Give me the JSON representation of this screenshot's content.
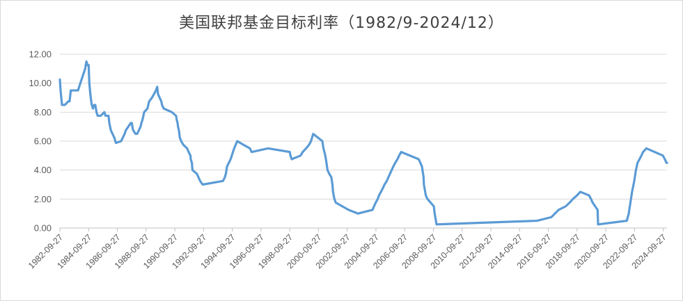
{
  "chart_data": {
    "type": "line",
    "title": "美国联邦基金目标利率（1982/9-2024/12）",
    "xlabel": "",
    "ylabel": "",
    "ylim": [
      0,
      12
    ],
    "yticks": [
      "0.00",
      "2.00",
      "4.00",
      "6.00",
      "8.00",
      "10.00",
      "12.00"
    ],
    "xtick_labels": [
      "1982-09-27",
      "1984-09-27",
      "1986-09-27",
      "1988-09-27",
      "1990-09-27",
      "1992-09-27",
      "1994-09-27",
      "1996-09-27",
      "1998-09-27",
      "2000-09-27",
      "2002-09-27",
      "2004-09-27",
      "2006-09-27",
      "2008-09-27",
      "2010-09-27",
      "2012-09-27",
      "2014-09-27",
      "2016-09-27",
      "2018-09-27",
      "2020-09-27",
      "2022-09-27",
      "2024-09-27"
    ],
    "x_range": [
      "1982-09-27",
      "2024-12-31"
    ],
    "grid": "horizontal",
    "line_color": "#5b9bd5",
    "series": [
      {
        "x": [
          "1982-09-27",
          "1982-10-15",
          "1982-11-20",
          "1983-02-01",
          "1983-05-01",
          "1983-06-01",
          "1983-07-01",
          "1983-08-01",
          "1983-10-01",
          "1984-01-01",
          "1984-03-01",
          "1984-05-01",
          "1984-07-01",
          "1984-08-01",
          "1984-09-01",
          "1984-09-27",
          "1984-10-15",
          "1984-11-01",
          "1984-11-20",
          "1984-12-15",
          "1985-01-15",
          "1985-02-15",
          "1985-03-15",
          "1985-04-15",
          "1985-05-15",
          "1985-06-15",
          "1985-08-01",
          "1985-11-01",
          "1985-12-01",
          "1986-01-15",
          "1986-02-15",
          "1986-03-07",
          "1986-04-15",
          "1986-07-11",
          "1986-08-21",
          "1987-01-01",
          "1987-04-01",
          "1987-05-01",
          "1987-09-04",
          "1987-10-01",
          "1987-10-22",
          "1987-11-04",
          "1988-01-01",
          "1988-02-11",
          "1988-03-29",
          "1988-05-09",
          "1988-06-01",
          "1988-06-30",
          "1988-08-09",
          "1988-11-01",
          "1988-11-22",
          "1988-12-15",
          "1989-02-24",
          "1989-06-05",
          "1989-07-07",
          "1989-07-27",
          "1989-10-18",
          "1989-11-06",
          "1989-12-20",
          "1990-07-13",
          "1990-10-29",
          "1990-11-13",
          "1990-12-07",
          "1990-12-18",
          "1991-01-09",
          "1991-02-01",
          "1991-03-08",
          "1991-04-30",
          "1991-08-06",
          "1991-09-13",
          "1991-10-31",
          "1991-11-06",
          "1991-12-06",
          "1991-12-20",
          "1992-04-09",
          "1992-07-02",
          "1992-09-04",
          "1994-02-04",
          "1994-03-22",
          "1994-04-18",
          "1994-05-17",
          "1994-08-16",
          "1994-11-15",
          "1995-02-01",
          "1995-07-06",
          "1995-12-19",
          "1996-01-31",
          "1997-03-25",
          "1998-09-29",
          "1998-10-15",
          "1998-11-17",
          "1999-06-30",
          "1999-08-24",
          "1999-11-16",
          "2000-02-02",
          "2000-03-21",
          "2000-05-16",
          "2001-01-03",
          "2001-01-31",
          "2001-03-20",
          "2001-04-18",
          "2001-05-15",
          "2001-06-27",
          "2001-08-21",
          "2001-09-17",
          "2001-10-02",
          "2001-11-06",
          "2001-12-11",
          "2002-11-06",
          "2003-06-25",
          "2004-06-30",
          "2004-08-10",
          "2004-09-21",
          "2004-11-10",
          "2004-12-14",
          "2005-02-02",
          "2005-03-22",
          "2005-05-03",
          "2005-06-30",
          "2005-08-09",
          "2005-09-20",
          "2005-11-01",
          "2005-12-13",
          "2006-01-31",
          "2006-03-28",
          "2006-05-10",
          "2006-06-29",
          "2007-09-18",
          "2007-10-31",
          "2007-12-11",
          "2008-01-22",
          "2008-01-30",
          "2008-03-18",
          "2008-04-30",
          "2008-10-08",
          "2008-10-29",
          "2008-12-16",
          "2015-12-16",
          "2016-12-14",
          "2017-03-15",
          "2017-06-14",
          "2017-12-13",
          "2018-03-21",
          "2018-06-13",
          "2018-09-26",
          "2018-12-19",
          "2019-07-31",
          "2019-09-18",
          "2019-10-30",
          "2020-03-03",
          "2020-03-15",
          "2022-03-16",
          "2022-05-04",
          "2022-06-15",
          "2022-07-27",
          "2022-09-21",
          "2022-11-02",
          "2022-12-14",
          "2023-02-01",
          "2023-03-22",
          "2023-05-03",
          "2023-07-26",
          "2024-09-18",
          "2024-11-07",
          "2024-12-18",
          "2024-12-31"
        ],
        "values": [
          10.25,
          9.5,
          8.5,
          8.5,
          8.75,
          8.75,
          9.5,
          9.5,
          9.5,
          9.5,
          10.0,
          10.5,
          11.0,
          11.5,
          11.25,
          11.25,
          10.0,
          9.5,
          9.0,
          8.5,
          8.25,
          8.5,
          8.5,
          8.0,
          7.75,
          7.75,
          7.75,
          8.0,
          7.75,
          7.75,
          7.75,
          7.25,
          6.75,
          6.25,
          5.875,
          6.0,
          6.5,
          6.75,
          7.25,
          7.25,
          6.875,
          6.75,
          6.5,
          6.5,
          6.75,
          7.0,
          7.25,
          7.5,
          8.0,
          8.25,
          8.5,
          8.75,
          9.0,
          9.5,
          9.75,
          9.25,
          8.75,
          8.5,
          8.25,
          8.0,
          7.75,
          7.5,
          7.25,
          7.0,
          6.75,
          6.25,
          6.0,
          5.75,
          5.5,
          5.25,
          5.0,
          4.75,
          4.5,
          4.0,
          3.75,
          3.25,
          3.0,
          3.25,
          3.5,
          3.75,
          4.25,
          4.75,
          5.5,
          6.0,
          5.75,
          5.5,
          5.25,
          5.5,
          5.25,
          5.0,
          4.75,
          5.0,
          5.25,
          5.5,
          5.75,
          6.0,
          6.5,
          6.0,
          5.5,
          5.0,
          4.5,
          4.0,
          3.75,
          3.5,
          3.0,
          2.5,
          2.0,
          1.75,
          1.25,
          1.0,
          1.25,
          1.5,
          1.75,
          2.0,
          2.25,
          2.5,
          2.75,
          3.0,
          3.25,
          3.5,
          3.75,
          4.0,
          4.25,
          4.5,
          4.75,
          5.0,
          5.25,
          4.75,
          4.5,
          4.25,
          3.5,
          3.0,
          2.25,
          2.0,
          1.5,
          1.0,
          0.25,
          0.5,
          0.75,
          1.0,
          1.25,
          1.5,
          1.75,
          2.0,
          2.25,
          2.5,
          2.25,
          2.0,
          1.75,
          1.25,
          0.25,
          0.5,
          1.0,
          1.75,
          2.5,
          3.25,
          4.0,
          4.5,
          4.75,
          5.0,
          5.25,
          5.5,
          5.0,
          4.75,
          4.5,
          4.5
        ]
      }
    ]
  }
}
